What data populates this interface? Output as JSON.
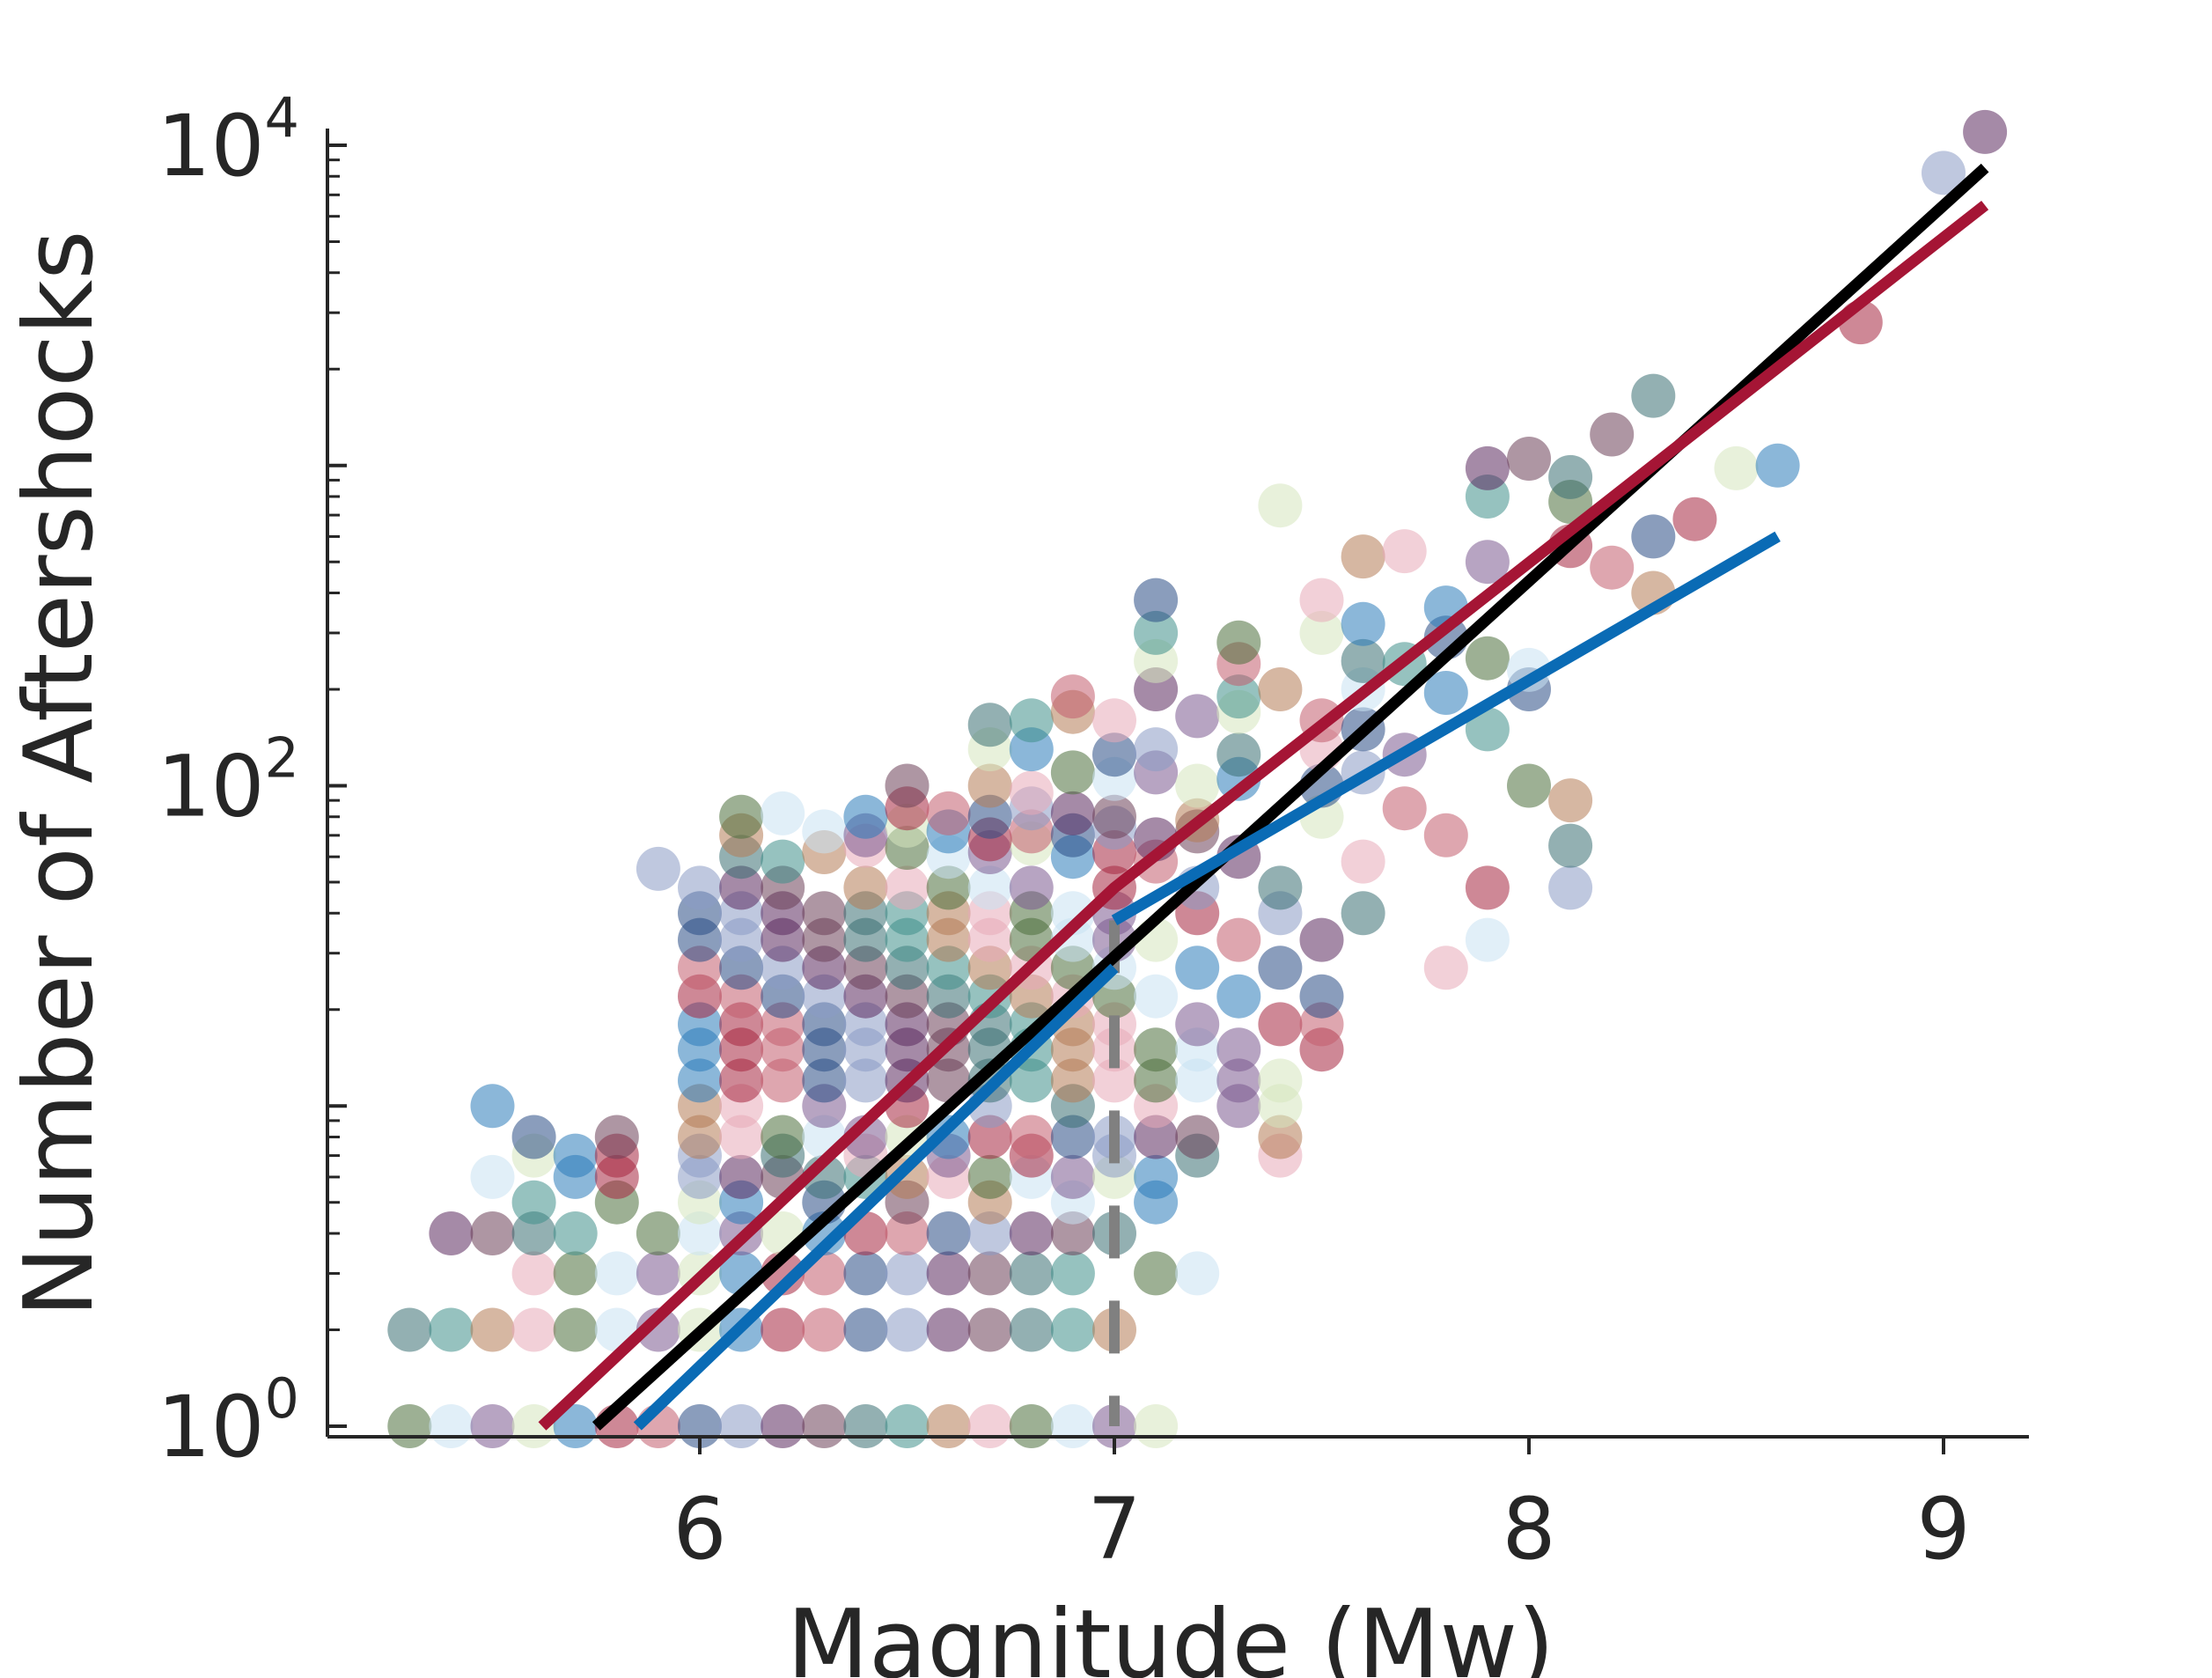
{
  "chart_data": {
    "type": "scatter",
    "title": "",
    "xlabel": "Magnitude (Mw)",
    "ylabel": "Number of Aftershocks",
    "x_ticks": [
      6,
      7,
      8,
      9
    ],
    "y_ticks": [
      {
        "value": 1,
        "base": "10",
        "exp": "0"
      },
      {
        "value": 100,
        "base": "10",
        "exp": "2"
      },
      {
        "value": 10000,
        "base": "10",
        "exp": "4"
      }
    ],
    "xlim": [
      5.2,
      9.2
    ],
    "ylim": [
      0.95,
      12000
    ],
    "y_scale": "log",
    "grid": false,
    "legend": "none",
    "colors": {
      "axis": "#262626",
      "fit_black": "#000000",
      "fit_red": "#a51535",
      "fit_blue": "#0a6bb5",
      "threshold": "#808080"
    },
    "point_palette": [
      "#e8a9b8",
      "#c9e1f2",
      "#d6e6bd",
      "#a6263f",
      "#2a4d85",
      "#5b2a5e",
      "#3a6f73",
      "#b57b55",
      "#4d6f3d",
      "#7b5a8f",
      "#2b7bba",
      "#c25c6e",
      "#8a9bc4",
      "#6b3f57",
      "#3f8f8a"
    ],
    "fit_lines": [
      {
        "color": "#000000",
        "points": [
          [
            5.75,
            1
          ],
          [
            9.1,
            8500
          ]
        ]
      },
      {
        "color": "#a51535",
        "points": [
          [
            5.62,
            1
          ],
          [
            7.0,
            48
          ],
          [
            9.1,
            6500
          ]
        ]
      },
      {
        "color": "#0a6bb5",
        "points": [
          [
            5.85,
            1
          ],
          [
            7.0,
            27
          ]
        ]
      },
      {
        "color": "#0a6bb5",
        "points": [
          [
            7.0,
            38
          ],
          [
            8.6,
            600
          ]
        ]
      }
    ],
    "threshold_line": {
      "x": 7.0,
      "y_range": [
        1,
        38
      ],
      "style": "dashed"
    },
    "points": [
      [
        5.3,
        1
      ],
      [
        5.4,
        1
      ],
      [
        5.5,
        1
      ],
      [
        5.6,
        1
      ],
      [
        5.7,
        1
      ],
      [
        5.8,
        1
      ],
      [
        5.9,
        1
      ],
      [
        6.0,
        1
      ],
      [
        6.1,
        1
      ],
      [
        6.2,
        1
      ],
      [
        6.3,
        1
      ],
      [
        6.4,
        1
      ],
      [
        6.5,
        1
      ],
      [
        6.6,
        1
      ],
      [
        6.7,
        1
      ],
      [
        6.8,
        1
      ],
      [
        6.9,
        1
      ],
      [
        7.0,
        1
      ],
      [
        7.1,
        1
      ],
      [
        5.3,
        2
      ],
      [
        5.4,
        2
      ],
      [
        5.5,
        2
      ],
      [
        5.6,
        2
      ],
      [
        5.7,
        2
      ],
      [
        5.8,
        2
      ],
      [
        5.9,
        2
      ],
      [
        6.0,
        2
      ],
      [
        6.1,
        2
      ],
      [
        6.2,
        2
      ],
      [
        6.3,
        2
      ],
      [
        6.4,
        2
      ],
      [
        6.5,
        2
      ],
      [
        6.6,
        2
      ],
      [
        6.7,
        2
      ],
      [
        6.8,
        2
      ],
      [
        6.9,
        2
      ],
      [
        7.0,
        2
      ],
      [
        5.6,
        3
      ],
      [
        5.7,
        3
      ],
      [
        5.8,
        3
      ],
      [
        5.9,
        3
      ],
      [
        6.0,
        3
      ],
      [
        6.1,
        3
      ],
      [
        6.2,
        3
      ],
      [
        6.3,
        3
      ],
      [
        6.4,
        3
      ],
      [
        6.5,
        3
      ],
      [
        6.6,
        3
      ],
      [
        6.7,
        3
      ],
      [
        6.8,
        3
      ],
      [
        6.9,
        3
      ],
      [
        7.1,
        3
      ],
      [
        7.2,
        3
      ],
      [
        5.4,
        4
      ],
      [
        5.5,
        4
      ],
      [
        5.6,
        4
      ],
      [
        5.7,
        4
      ],
      [
        5.9,
        4
      ],
      [
        6.0,
        4
      ],
      [
        6.1,
        4
      ],
      [
        6.2,
        4
      ],
      [
        6.3,
        4
      ],
      [
        6.4,
        4
      ],
      [
        6.5,
        4
      ],
      [
        6.6,
        4
      ],
      [
        6.7,
        4
      ],
      [
        6.8,
        4
      ],
      [
        6.9,
        4
      ],
      [
        7.0,
        4
      ],
      [
        5.6,
        5
      ],
      [
        5.8,
        5
      ],
      [
        6.0,
        5
      ],
      [
        6.1,
        5
      ],
      [
        6.3,
        5
      ],
      [
        6.5,
        5
      ],
      [
        6.7,
        5
      ],
      [
        6.9,
        5
      ],
      [
        7.1,
        5
      ],
      [
        5.5,
        6
      ],
      [
        5.7,
        6
      ],
      [
        5.8,
        6
      ],
      [
        6.0,
        6
      ],
      [
        6.1,
        6
      ],
      [
        6.2,
        6
      ],
      [
        6.3,
        6
      ],
      [
        6.4,
        6
      ],
      [
        6.5,
        6
      ],
      [
        6.6,
        6
      ],
      [
        6.7,
        6
      ],
      [
        6.8,
        6
      ],
      [
        6.9,
        6
      ],
      [
        7.0,
        6
      ],
      [
        7.1,
        6
      ],
      [
        5.6,
        7
      ],
      [
        5.7,
        7
      ],
      [
        5.8,
        7
      ],
      [
        6.0,
        7
      ],
      [
        6.2,
        7
      ],
      [
        6.4,
        7
      ],
      [
        6.6,
        7
      ],
      [
        6.8,
        7
      ],
      [
        7.0,
        7
      ],
      [
        7.2,
        7
      ],
      [
        7.4,
        7
      ],
      [
        5.6,
        8
      ],
      [
        5.8,
        8
      ],
      [
        6.0,
        8
      ],
      [
        6.1,
        8
      ],
      [
        6.2,
        8
      ],
      [
        6.3,
        8
      ],
      [
        6.4,
        8
      ],
      [
        6.5,
        8
      ],
      [
        6.6,
        8
      ],
      [
        6.7,
        8
      ],
      [
        6.8,
        8
      ],
      [
        6.9,
        8
      ],
      [
        7.0,
        8
      ],
      [
        7.1,
        8
      ],
      [
        7.2,
        8
      ],
      [
        7.4,
        8
      ],
      [
        5.5,
        10
      ],
      [
        6.0,
        10
      ],
      [
        6.1,
        10
      ],
      [
        6.3,
        10
      ],
      [
        6.5,
        10
      ],
      [
        6.7,
        10
      ],
      [
        6.9,
        10
      ],
      [
        7.1,
        10
      ],
      [
        7.3,
        10
      ],
      [
        7.4,
        10
      ],
      [
        6.0,
        12
      ],
      [
        6.1,
        12
      ],
      [
        6.2,
        12
      ],
      [
        6.3,
        12
      ],
      [
        6.4,
        12
      ],
      [
        6.5,
        12
      ],
      [
        6.6,
        12
      ],
      [
        6.7,
        12
      ],
      [
        6.8,
        12
      ],
      [
        6.9,
        12
      ],
      [
        7.0,
        12
      ],
      [
        7.1,
        12
      ],
      [
        7.2,
        12
      ],
      [
        7.3,
        12
      ],
      [
        7.4,
        12
      ],
      [
        6.0,
        15
      ],
      [
        6.1,
        15
      ],
      [
        6.2,
        15
      ],
      [
        6.3,
        15
      ],
      [
        6.4,
        15
      ],
      [
        6.5,
        15
      ],
      [
        6.6,
        15
      ],
      [
        6.7,
        15
      ],
      [
        6.8,
        15
      ],
      [
        6.9,
        15
      ],
      [
        7.0,
        15
      ],
      [
        7.1,
        15
      ],
      [
        7.2,
        15
      ],
      [
        7.3,
        15
      ],
      [
        7.5,
        15
      ],
      [
        6.0,
        18
      ],
      [
        6.1,
        18
      ],
      [
        6.2,
        18
      ],
      [
        6.3,
        18
      ],
      [
        6.4,
        18
      ],
      [
        6.5,
        18
      ],
      [
        6.6,
        18
      ],
      [
        6.7,
        18
      ],
      [
        6.8,
        18
      ],
      [
        6.9,
        18
      ],
      [
        7.0,
        18
      ],
      [
        7.2,
        18
      ],
      [
        7.4,
        18
      ],
      [
        7.5,
        18
      ],
      [
        6.0,
        22
      ],
      [
        6.1,
        22
      ],
      [
        6.2,
        22
      ],
      [
        6.3,
        22
      ],
      [
        6.4,
        22
      ],
      [
        6.5,
        22
      ],
      [
        6.6,
        22
      ],
      [
        6.7,
        22
      ],
      [
        6.8,
        22
      ],
      [
        6.9,
        22
      ],
      [
        7.0,
        22
      ],
      [
        7.1,
        22
      ],
      [
        7.3,
        22
      ],
      [
        7.5,
        22
      ],
      [
        6.0,
        27
      ],
      [
        6.1,
        27
      ],
      [
        6.2,
        27
      ],
      [
        6.3,
        27
      ],
      [
        6.4,
        27
      ],
      [
        6.5,
        27
      ],
      [
        6.6,
        27
      ],
      [
        6.7,
        27
      ],
      [
        6.8,
        27
      ],
      [
        6.9,
        27
      ],
      [
        7.0,
        27
      ],
      [
        7.2,
        27
      ],
      [
        7.4,
        27
      ],
      [
        7.8,
        27
      ],
      [
        6.0,
        33
      ],
      [
        6.1,
        33
      ],
      [
        6.2,
        33
      ],
      [
        6.3,
        33
      ],
      [
        6.4,
        33
      ],
      [
        6.5,
        33
      ],
      [
        6.6,
        33
      ],
      [
        6.7,
        33
      ],
      [
        6.8,
        33
      ],
      [
        6.9,
        33
      ],
      [
        7.0,
        33
      ],
      [
        7.1,
        33
      ],
      [
        7.3,
        33
      ],
      [
        7.5,
        33
      ],
      [
        7.9,
        33
      ],
      [
        6.0,
        40
      ],
      [
        6.1,
        40
      ],
      [
        6.2,
        40
      ],
      [
        6.3,
        40
      ],
      [
        6.4,
        40
      ],
      [
        6.5,
        40
      ],
      [
        6.6,
        40
      ],
      [
        6.7,
        40
      ],
      [
        6.8,
        40
      ],
      [
        6.9,
        40
      ],
      [
        7.0,
        40
      ],
      [
        7.2,
        40
      ],
      [
        7.4,
        40
      ],
      [
        7.6,
        40
      ],
      [
        6.0,
        48
      ],
      [
        6.1,
        48
      ],
      [
        6.2,
        48
      ],
      [
        6.4,
        48
      ],
      [
        6.5,
        48
      ],
      [
        6.6,
        48
      ],
      [
        6.7,
        48
      ],
      [
        6.8,
        48
      ],
      [
        7.0,
        48
      ],
      [
        7.2,
        48
      ],
      [
        7.4,
        48
      ],
      [
        7.9,
        48
      ],
      [
        8.1,
        48
      ],
      [
        5.9,
        55
      ],
      [
        6.1,
        60
      ],
      [
        6.2,
        58
      ],
      [
        6.3,
        62
      ],
      [
        6.4,
        65
      ],
      [
        6.5,
        64
      ],
      [
        6.6,
        60
      ],
      [
        6.7,
        62
      ],
      [
        6.8,
        66
      ],
      [
        6.9,
        60
      ],
      [
        7.0,
        62
      ],
      [
        7.1,
        58
      ],
      [
        7.3,
        60
      ],
      [
        7.6,
        58
      ],
      [
        6.1,
        70
      ],
      [
        6.3,
        72
      ],
      [
        6.4,
        70
      ],
      [
        6.5,
        75
      ],
      [
        6.6,
        72
      ],
      [
        6.7,
        68
      ],
      [
        6.8,
        72
      ],
      [
        6.9,
        70
      ],
      [
        7.0,
        74
      ],
      [
        7.1,
        68
      ],
      [
        7.2,
        72
      ],
      [
        7.8,
        70
      ],
      [
        8.1,
        65
      ],
      [
        6.1,
        80
      ],
      [
        6.2,
        82
      ],
      [
        6.4,
        80
      ],
      [
        6.5,
        85
      ],
      [
        6.6,
        82
      ],
      [
        6.7,
        80
      ],
      [
        6.8,
        85
      ],
      [
        6.9,
        82
      ],
      [
        7.0,
        80
      ],
      [
        7.2,
        78
      ],
      [
        7.5,
        80
      ],
      [
        7.7,
        85
      ],
      [
        8.1,
        90
      ],
      [
        6.5,
        100
      ],
      [
        6.7,
        100
      ],
      [
        6.8,
        95
      ],
      [
        6.9,
        110
      ],
      [
        7.0,
        105
      ],
      [
        7.1,
        110
      ],
      [
        7.2,
        100
      ],
      [
        7.3,
        105
      ],
      [
        7.5,
        100
      ],
      [
        7.6,
        110
      ],
      [
        8.0,
        100
      ],
      [
        6.7,
        130
      ],
      [
        6.8,
        130
      ],
      [
        7.0,
        125
      ],
      [
        7.1,
        130
      ],
      [
        7.3,
        125
      ],
      [
        7.5,
        130
      ],
      [
        7.7,
        125
      ],
      [
        6.7,
        155
      ],
      [
        6.8,
        160
      ],
      [
        6.9,
        170
      ],
      [
        7.0,
        160
      ],
      [
        7.2,
        165
      ],
      [
        7.3,
        170
      ],
      [
        7.5,
        160
      ],
      [
        7.6,
        150
      ],
      [
        7.9,
        150
      ],
      [
        6.9,
        190
      ],
      [
        7.1,
        200
      ],
      [
        7.3,
        190
      ],
      [
        7.4,
        200
      ],
      [
        7.6,
        200
      ],
      [
        7.8,
        195
      ],
      [
        8.0,
        200
      ],
      [
        7.1,
        245
      ],
      [
        7.3,
        240
      ],
      [
        7.6,
        245
      ],
      [
        7.7,
        240
      ],
      [
        7.9,
        250
      ],
      [
        8.0,
        230
      ],
      [
        7.1,
        300
      ],
      [
        7.3,
        280
      ],
      [
        7.5,
        300
      ],
      [
        7.6,
        320
      ],
      [
        7.8,
        290
      ],
      [
        7.1,
        380
      ],
      [
        7.5,
        380
      ],
      [
        7.8,
        360
      ],
      [
        8.3,
        400
      ],
      [
        7.6,
        520
      ],
      [
        7.7,
        540
      ],
      [
        7.9,
        500
      ],
      [
        8.1,
        560
      ],
      [
        8.2,
        480
      ],
      [
        8.3,
        600
      ],
      [
        7.4,
        750
      ],
      [
        7.9,
        800
      ],
      [
        8.1,
        770
      ],
      [
        8.4,
        680
      ],
      [
        7.9,
        980
      ],
      [
        8.0,
        1050
      ],
      [
        8.1,
        920
      ],
      [
        8.5,
        980
      ],
      [
        8.6,
        1000
      ],
      [
        8.2,
        1250
      ],
      [
        8.3,
        1650
      ],
      [
        8.8,
        2800
      ],
      [
        9.0,
        8200
      ],
      [
        9.1,
        11000
      ]
    ]
  }
}
